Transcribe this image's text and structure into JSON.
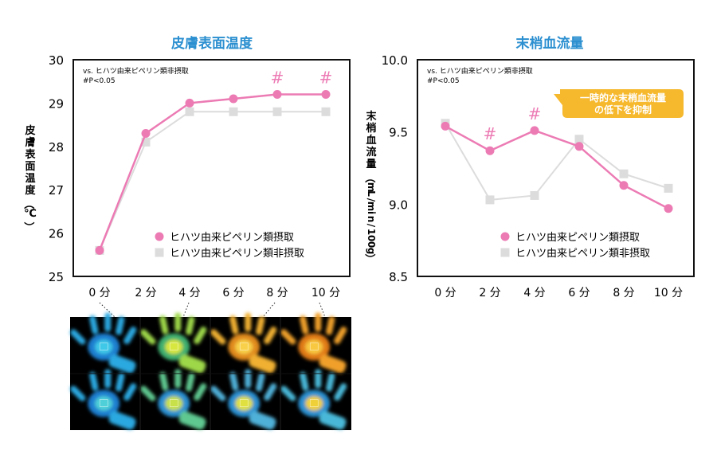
{
  "colors": {
    "title": "#2b8fd0",
    "intake": "#ec7bb4",
    "non_intake": "#dcdcdc",
    "callout_bg": "#f6b82c",
    "axis": "#111111"
  },
  "chart_data": [
    {
      "type": "line",
      "title": "皮膚表面温度",
      "ylabel": "皮膚表面温度（℃）",
      "xlabel": "",
      "categories": [
        "0分",
        "2分",
        "4分",
        "6分",
        "8分",
        "10分"
      ],
      "ylim": [
        25,
        30
      ],
      "yticks": [
        "25",
        "26",
        "27",
        "28",
        "29",
        "30"
      ],
      "stat_note": [
        "vs. ヒハツ由来ピペリン類非摂取",
        "#P<0.05"
      ],
      "significance": [
        {
          "index": 4,
          "label": "#"
        },
        {
          "index": 5,
          "label": "#"
        }
      ],
      "series": [
        {
          "name": "ヒハツ由来ピペリン類摂取",
          "values": [
            25.6,
            28.3,
            29.0,
            29.1,
            29.2,
            29.2
          ]
        },
        {
          "name": "ヒハツ由来ピペリン類非摂取",
          "values": [
            25.6,
            28.1,
            28.8,
            28.8,
            28.8,
            28.8
          ]
        }
      ],
      "legend_position": "bottom-right"
    },
    {
      "type": "line",
      "title": "末梢血流量",
      "ylabel": "末梢血流量（mL/min/100g）",
      "xlabel": "",
      "categories": [
        "0分",
        "2分",
        "4分",
        "6分",
        "8分",
        "10分"
      ],
      "ylim": [
        8.5,
        10.0
      ],
      "yticks": [
        "8.5",
        "9.0",
        "9.5",
        "10.0"
      ],
      "stat_note": [
        "vs. ヒハツ由来ピペリン類非摂取",
        "#P<0.05"
      ],
      "significance": [
        {
          "index": 1,
          "label": "#"
        },
        {
          "index": 2,
          "label": "#"
        }
      ],
      "callout": [
        "一時的な末梢血流量",
        "の低下を抑制"
      ],
      "series": [
        {
          "name": "ヒハツ由来ピペリン類摂取",
          "values": [
            9.54,
            9.37,
            9.51,
            9.4,
            9.13,
            8.97
          ]
        },
        {
          "name": "ヒハツ由来ピペリン類非摂取",
          "values": [
            9.56,
            9.03,
            9.06,
            9.45,
            9.21,
            9.11
          ]
        }
      ],
      "legend_position": "bottom-right"
    }
  ],
  "thermal_images": {
    "description_points": [
      "0分",
      "4分",
      "8分",
      "10分"
    ]
  }
}
